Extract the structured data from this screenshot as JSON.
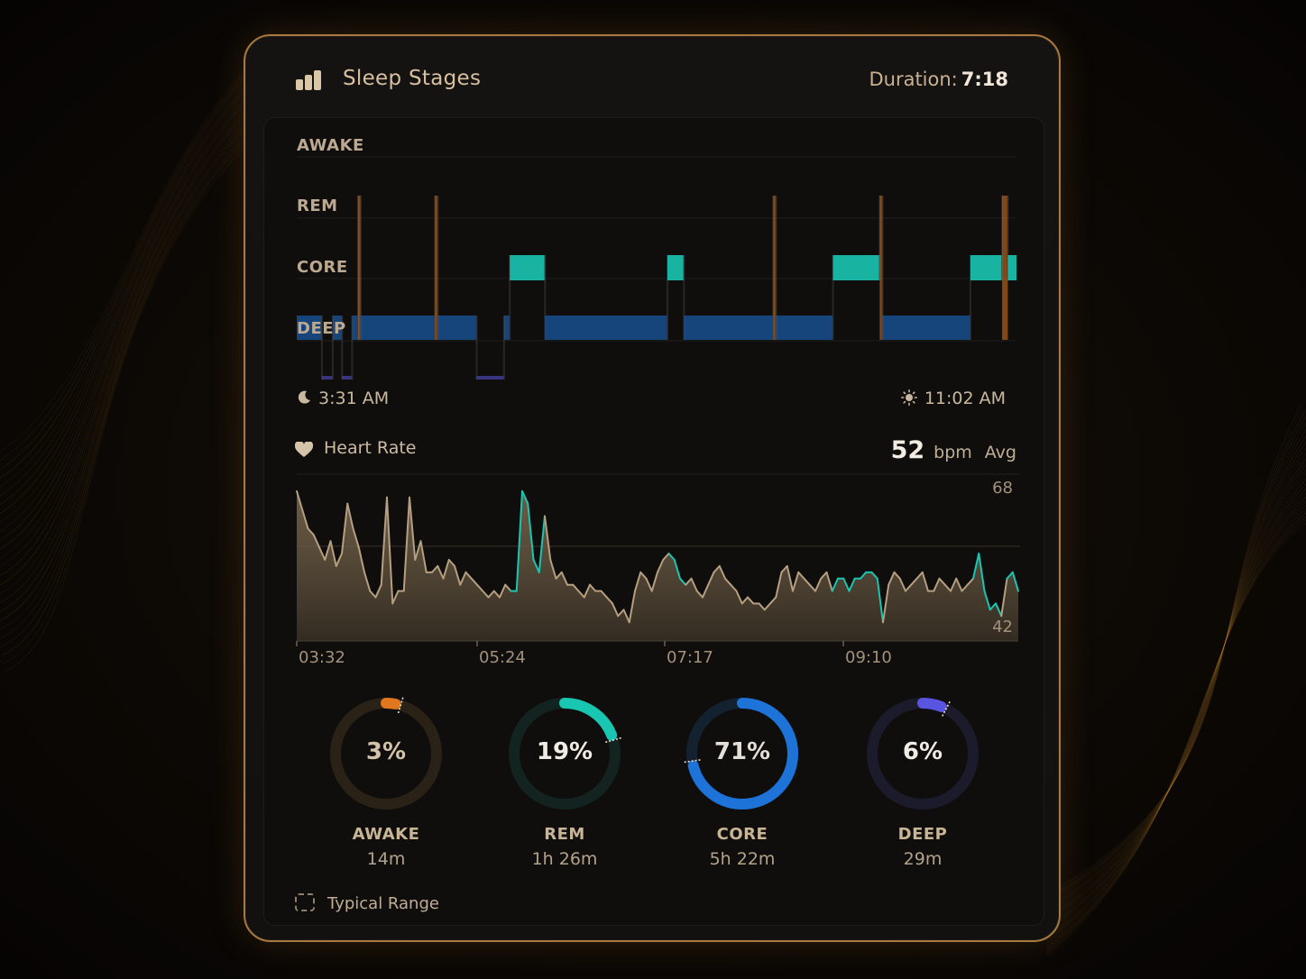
{
  "header": {
    "title": "Sleep Stages",
    "icon": "bar-chart-icon",
    "duration_label": "Duration:",
    "duration_value": "7:18"
  },
  "stage_axis": [
    "AWAKE",
    "REM",
    "CORE",
    "DEEP"
  ],
  "sleep_times": {
    "bed_time": "3:31 AM",
    "bed_icon": "moon-icon",
    "wake_time": "11:02 AM",
    "wake_icon": "sun-icon"
  },
  "heart_rate": {
    "label": "Heart Rate",
    "icon": "heart-icon",
    "value": "52",
    "unit": "bpm",
    "qualifier": "Avg"
  },
  "rings": [
    {
      "pct": 3,
      "label": "AWAKE",
      "duration": "14m",
      "color": "#e0771f",
      "track": "#2a2117"
    },
    {
      "pct": 19,
      "label": "REM",
      "duration": "1h 26m",
      "color": "#19c6b1",
      "track": "#13231f"
    },
    {
      "pct": 71,
      "label": "CORE",
      "duration": "5h 22m",
      "color": "#1e73d8",
      "track": "#14212f"
    },
    {
      "pct": 6,
      "label": "DEEP",
      "duration": "29m",
      "color": "#5a55e0",
      "track": "#1b1b2c"
    }
  ],
  "legend": {
    "label": "Typical Range"
  },
  "colors": {
    "accent_gold": "#a8793f",
    "awake": "#e0771f",
    "rem": "#19c6b1",
    "core": "#1e73d8",
    "deep": "#5a55e0",
    "hr_line": "#b59f80"
  },
  "chart_data": [
    {
      "type": "line",
      "title": "Sleep Stages",
      "y_categories": [
        "AWAKE",
        "REM",
        "CORE",
        "DEEP"
      ],
      "segments": [
        {
          "stage": "CORE",
          "start": 0.0,
          "end": 0.035
        },
        {
          "stage": "DEEP",
          "start": 0.035,
          "end": 0.05
        },
        {
          "stage": "CORE",
          "start": 0.05,
          "end": 0.063
        },
        {
          "stage": "DEEP",
          "start": 0.063,
          "end": 0.077
        },
        {
          "stage": "CORE",
          "start": 0.077,
          "end": 0.085
        },
        {
          "stage": "AWAKE",
          "start": 0.085,
          "end": 0.089
        },
        {
          "stage": "CORE",
          "start": 0.089,
          "end": 0.192
        },
        {
          "stage": "AWAKE",
          "start": 0.192,
          "end": 0.196
        },
        {
          "stage": "CORE",
          "start": 0.196,
          "end": 0.25
        },
        {
          "stage": "DEEP",
          "start": 0.25,
          "end": 0.288
        },
        {
          "stage": "CORE",
          "start": 0.288,
          "end": 0.296
        },
        {
          "stage": "REM",
          "start": 0.296,
          "end": 0.345
        },
        {
          "stage": "CORE",
          "start": 0.345,
          "end": 0.515
        },
        {
          "stage": "REM",
          "start": 0.515,
          "end": 0.538
        },
        {
          "stage": "CORE",
          "start": 0.538,
          "end": 0.662
        },
        {
          "stage": "AWAKE",
          "start": 0.662,
          "end": 0.666
        },
        {
          "stage": "CORE",
          "start": 0.666,
          "end": 0.745
        },
        {
          "stage": "REM",
          "start": 0.745,
          "end": 0.81
        },
        {
          "stage": "AWAKE",
          "start": 0.81,
          "end": 0.814
        },
        {
          "stage": "CORE",
          "start": 0.814,
          "end": 0.936
        },
        {
          "stage": "REM",
          "start": 0.936,
          "end": 0.98
        },
        {
          "stage": "AWAKE",
          "start": 0.98,
          "end": 0.988
        },
        {
          "stage": "REM",
          "start": 0.988,
          "end": 1.0
        }
      ]
    },
    {
      "type": "area",
      "title": "Heart Rate",
      "x_ticks": [
        "03:32",
        "05:24",
        "07:17",
        "09:10"
      ],
      "ylim": [
        42,
        68
      ],
      "y_ticks": [
        68,
        42
      ],
      "values": [
        66,
        63,
        60,
        59,
        57,
        55,
        58,
        54,
        56,
        64,
        60,
        57,
        53,
        50,
        49,
        51,
        65,
        48,
        50,
        50,
        65,
        55,
        58,
        53,
        53,
        54,
        52,
        55,
        54,
        51,
        53,
        52,
        51,
        50,
        49,
        50,
        49,
        51,
        50,
        50,
        66,
        64,
        55,
        53,
        62,
        55,
        52,
        53,
        51,
        51,
        50,
        49,
        51,
        50,
        50,
        49,
        48,
        46,
        47,
        45,
        50,
        53,
        52,
        50,
        53,
        55,
        56,
        55,
        52,
        51,
        52,
        50,
        49,
        51,
        53,
        54,
        52,
        51,
        50,
        48,
        49,
        48,
        48,
        47,
        48,
        49,
        53,
        54,
        50,
        53,
        52,
        51,
        50,
        52,
        53,
        50,
        52,
        52,
        50,
        52,
        52,
        53,
        53,
        52,
        45,
        51,
        53,
        52,
        50,
        51,
        52,
        53,
        50,
        50,
        52,
        51,
        50,
        52,
        50,
        51,
        52,
        56,
        50,
        47,
        48,
        46,
        52,
        53,
        50
      ]
    }
  ]
}
